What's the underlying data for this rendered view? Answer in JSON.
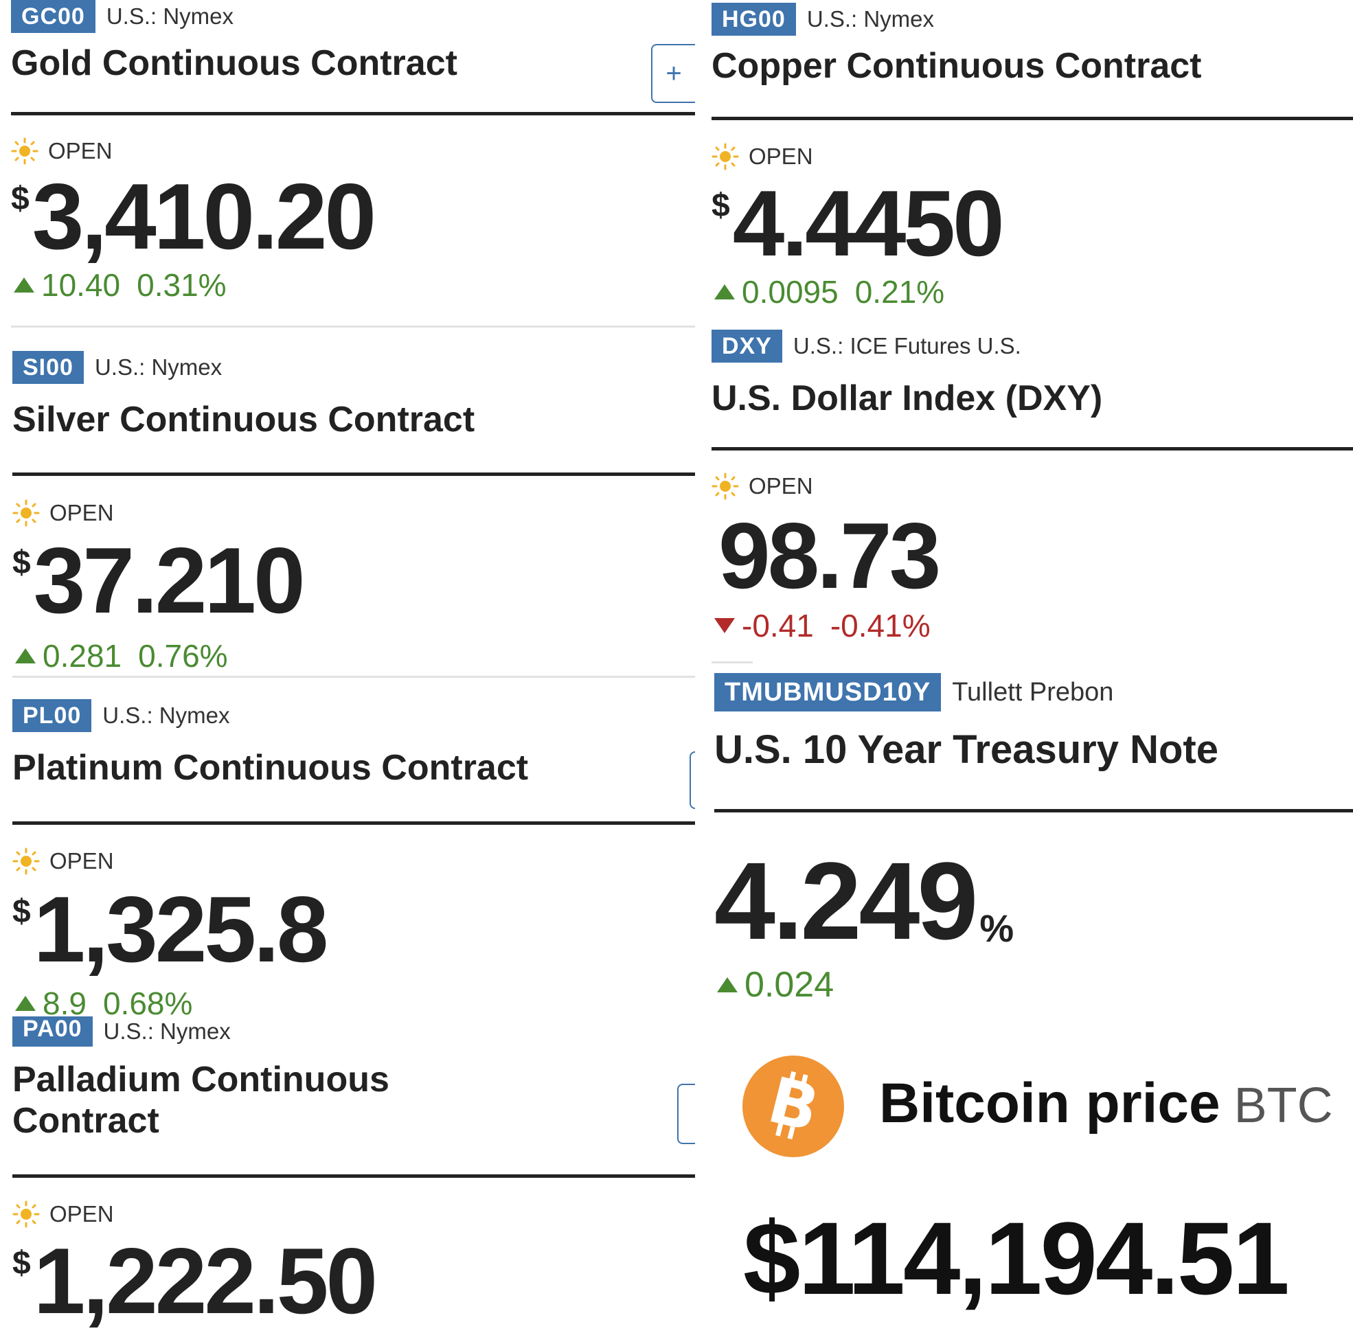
{
  "colors": {
    "accent": "#3f74ad",
    "up": "#4a8b32",
    "down": "#b22a2a",
    "sun": "#f0b323",
    "bitcoin": "#f09435"
  },
  "gold": {
    "ticker": "GC00",
    "exchange": "U.S.: Nymex",
    "name": "Gold Continuous Contract",
    "status": "OPEN",
    "currency": "$",
    "price": "3,410.20",
    "change": "10.40",
    "change_pct": "0.31%",
    "add_label": "+"
  },
  "copper": {
    "ticker": "HG00",
    "exchange": "U.S.: Nymex",
    "name": "Copper Continuous Contract",
    "status": "OPEN",
    "currency": "$",
    "price": "4.4450",
    "change": "0.0095",
    "change_pct": "0.21%"
  },
  "silver": {
    "ticker": "SI00",
    "exchange": "U.S.: Nymex",
    "name": "Silver Continuous Contract",
    "status": "OPEN",
    "currency": "$",
    "price": "37.210",
    "change": "0.281",
    "change_pct": "0.76%"
  },
  "dxy": {
    "ticker": "DXY",
    "exchange": "U.S.: ICE Futures U.S.",
    "name": "U.S. Dollar Index (DXY)",
    "status": "OPEN",
    "price": "98.73",
    "change": "-0.41",
    "change_pct": "-0.41%"
  },
  "platinum": {
    "ticker": "PL00",
    "exchange": "U.S.: Nymex",
    "name": "Platinum Continuous Contract",
    "status": "OPEN",
    "currency": "$",
    "price": "1,325.8",
    "change": "8.9",
    "change_pct": "0.68%"
  },
  "treasury": {
    "ticker": "TMUBMUSD10Y",
    "exchange": "Tullett Prebon",
    "name": "U.S. 10 Year Treasury Note",
    "price": "4.249",
    "unit": "%",
    "change": "0.024"
  },
  "palladium": {
    "ticker": "PA00",
    "exchange": "U.S.: Nymex",
    "name": "Palladium Continuous Contract",
    "status": "OPEN",
    "currency": "$",
    "price": "1,222.50"
  },
  "bitcoin": {
    "title": "Bitcoin price",
    "symbol": "BTC",
    "price": "$114,194.51",
    "icon": "bitcoin-icon"
  }
}
